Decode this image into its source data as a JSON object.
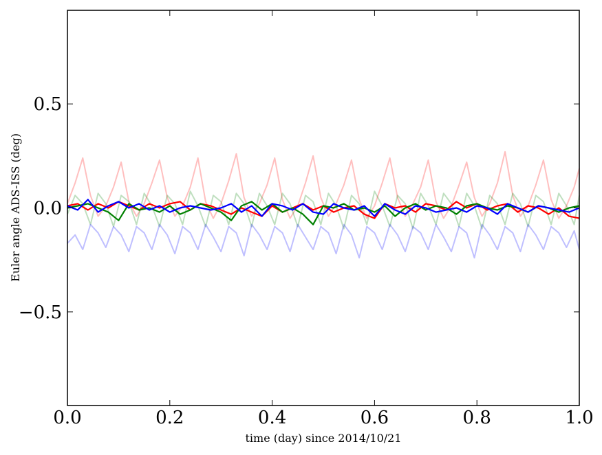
{
  "chart_data": {
    "type": "line",
    "xlabel": "time (day) since 2014/10/21",
    "ylabel": "Euler angle ADS-ISS (deg)",
    "xlim": [
      0.0,
      1.0
    ],
    "ylim": [
      -0.95,
      0.95
    ],
    "xticks": [
      0.0,
      0.2,
      0.4,
      0.6,
      0.8,
      1.0
    ],
    "xtick_labels": [
      "0.0",
      "0.2",
      "0.4",
      "0.6",
      "0.8",
      "1.0"
    ],
    "yticks": [
      -0.5,
      0.0,
      0.5
    ],
    "ytick_labels": [
      "−0.5",
      "0.0",
      "0.5"
    ],
    "grid": false,
    "legend": "none",
    "series": [
      {
        "color": "#ff0000",
        "opacity": 0.25,
        "x": [
          0.0,
          0.015,
          0.03,
          0.045,
          0.06,
          0.075,
          0.09,
          0.105,
          0.12,
          0.135,
          0.15,
          0.165,
          0.18,
          0.195,
          0.21,
          0.225,
          0.24,
          0.255,
          0.27,
          0.285,
          0.3,
          0.315,
          0.33,
          0.345,
          0.36,
          0.375,
          0.39,
          0.405,
          0.42,
          0.435,
          0.45,
          0.465,
          0.48,
          0.495,
          0.51,
          0.525,
          0.54,
          0.555,
          0.57,
          0.585,
          0.6,
          0.615,
          0.63,
          0.645,
          0.66,
          0.675,
          0.69,
          0.705,
          0.72,
          0.735,
          0.75,
          0.765,
          0.78,
          0.795,
          0.81,
          0.825,
          0.84,
          0.855,
          0.87,
          0.885,
          0.9,
          0.915,
          0.93,
          0.945,
          0.96,
          0.975,
          0.99,
          1.0
        ],
        "y": [
          0.02,
          0.12,
          0.24,
          0.06,
          -0.04,
          0.01,
          0.1,
          0.22,
          0.03,
          -0.04,
          0.02,
          0.12,
          0.23,
          0.05,
          -0.04,
          0.01,
          0.1,
          0.24,
          0.03,
          -0.05,
          0.02,
          0.13,
          0.26,
          0.05,
          -0.04,
          0.02,
          0.11,
          0.24,
          0.04,
          -0.05,
          0.01,
          0.12,
          0.25,
          0.05,
          -0.04,
          0.02,
          0.11,
          0.23,
          0.04,
          -0.05,
          0.01,
          0.12,
          0.24,
          0.05,
          -0.04,
          0.02,
          0.1,
          0.23,
          0.03,
          -0.05,
          0.01,
          0.11,
          0.22,
          0.05,
          -0.04,
          0.02,
          0.12,
          0.27,
          0.06,
          -0.04,
          0.01,
          0.11,
          0.23,
          0.04,
          -0.05,
          0.01,
          0.1,
          0.19
        ]
      },
      {
        "color": "#008000",
        "opacity": 0.25,
        "x": [
          0.0,
          0.015,
          0.03,
          0.045,
          0.06,
          0.075,
          0.09,
          0.105,
          0.12,
          0.135,
          0.15,
          0.165,
          0.18,
          0.195,
          0.21,
          0.225,
          0.24,
          0.255,
          0.27,
          0.285,
          0.3,
          0.315,
          0.33,
          0.345,
          0.36,
          0.375,
          0.39,
          0.405,
          0.42,
          0.435,
          0.45,
          0.465,
          0.48,
          0.495,
          0.51,
          0.525,
          0.54,
          0.555,
          0.57,
          0.585,
          0.6,
          0.615,
          0.63,
          0.645,
          0.66,
          0.675,
          0.69,
          0.705,
          0.72,
          0.735,
          0.75,
          0.765,
          0.78,
          0.795,
          0.81,
          0.825,
          0.84,
          0.855,
          0.87,
          0.885,
          0.9,
          0.915,
          0.93,
          0.945,
          0.96,
          0.975,
          0.99,
          1.0
        ],
        "y": [
          -0.03,
          0.06,
          0.02,
          -0.08,
          0.07,
          0.02,
          -0.09,
          0.06,
          0.03,
          -0.08,
          0.07,
          0.01,
          -0.09,
          0.06,
          0.02,
          -0.08,
          0.08,
          0.01,
          -0.09,
          0.06,
          0.03,
          -0.08,
          0.07,
          0.02,
          -0.09,
          0.07,
          0.01,
          -0.08,
          0.07,
          0.02,
          -0.09,
          0.06,
          0.03,
          -0.08,
          0.07,
          0.01,
          -0.1,
          0.06,
          0.02,
          -0.08,
          0.08,
          0.01,
          -0.09,
          0.06,
          0.02,
          -0.1,
          0.07,
          0.01,
          -0.08,
          0.07,
          0.02,
          -0.09,
          0.07,
          0.01,
          -0.1,
          0.06,
          0.02,
          -0.08,
          0.07,
          0.02,
          -0.09,
          0.06,
          0.03,
          -0.08,
          0.07,
          0.01,
          -0.08,
          0.06
        ]
      },
      {
        "color": "#0000ff",
        "opacity": 0.25,
        "x": [
          0.0,
          0.015,
          0.03,
          0.045,
          0.06,
          0.075,
          0.09,
          0.105,
          0.12,
          0.135,
          0.15,
          0.165,
          0.18,
          0.195,
          0.21,
          0.225,
          0.24,
          0.255,
          0.27,
          0.285,
          0.3,
          0.315,
          0.33,
          0.345,
          0.36,
          0.375,
          0.39,
          0.405,
          0.42,
          0.435,
          0.45,
          0.465,
          0.48,
          0.495,
          0.51,
          0.525,
          0.54,
          0.555,
          0.57,
          0.585,
          0.6,
          0.615,
          0.63,
          0.645,
          0.66,
          0.675,
          0.69,
          0.705,
          0.72,
          0.735,
          0.75,
          0.765,
          0.78,
          0.795,
          0.81,
          0.825,
          0.84,
          0.855,
          0.87,
          0.885,
          0.9,
          0.915,
          0.93,
          0.945,
          0.96,
          0.975,
          0.99,
          1.0
        ],
        "y": [
          -0.17,
          -0.13,
          -0.2,
          -0.08,
          -0.12,
          -0.19,
          -0.09,
          -0.13,
          -0.21,
          -0.09,
          -0.12,
          -0.2,
          -0.08,
          -0.13,
          -0.22,
          -0.09,
          -0.12,
          -0.2,
          -0.08,
          -0.14,
          -0.21,
          -0.09,
          -0.12,
          -0.23,
          -0.08,
          -0.13,
          -0.2,
          -0.09,
          -0.12,
          -0.21,
          -0.08,
          -0.14,
          -0.2,
          -0.09,
          -0.12,
          -0.22,
          -0.08,
          -0.13,
          -0.24,
          -0.09,
          -0.12,
          -0.2,
          -0.08,
          -0.13,
          -0.21,
          -0.09,
          -0.12,
          -0.2,
          -0.08,
          -0.14,
          -0.21,
          -0.09,
          -0.12,
          -0.24,
          -0.08,
          -0.13,
          -0.2,
          -0.09,
          -0.12,
          -0.21,
          -0.08,
          -0.13,
          -0.2,
          -0.09,
          -0.12,
          -0.19,
          -0.11,
          -0.2
        ]
      },
      {
        "color": "#ff0000",
        "opacity": 1,
        "x": [
          0.0,
          0.02,
          0.04,
          0.06,
          0.08,
          0.1,
          0.12,
          0.14,
          0.16,
          0.18,
          0.2,
          0.22,
          0.24,
          0.26,
          0.28,
          0.3,
          0.32,
          0.34,
          0.36,
          0.38,
          0.4,
          0.42,
          0.44,
          0.46,
          0.48,
          0.5,
          0.52,
          0.54,
          0.56,
          0.58,
          0.6,
          0.62,
          0.64,
          0.66,
          0.68,
          0.7,
          0.72,
          0.74,
          0.76,
          0.78,
          0.8,
          0.82,
          0.84,
          0.86,
          0.88,
          0.9,
          0.92,
          0.94,
          0.96,
          0.98,
          1.0
        ],
        "y": [
          0.01,
          0.02,
          -0.01,
          0.02,
          0.0,
          0.03,
          0.01,
          -0.01,
          0.02,
          0.0,
          0.02,
          0.03,
          -0.01,
          0.02,
          0.01,
          -0.01,
          -0.03,
          0.0,
          -0.02,
          -0.04,
          0.01,
          -0.02,
          0.0,
          0.02,
          -0.01,
          0.01,
          -0.02,
          0.0,
          0.01,
          -0.03,
          -0.05,
          0.02,
          0.0,
          0.01,
          -0.02,
          0.02,
          0.01,
          -0.01,
          0.03,
          0.0,
          0.02,
          -0.01,
          0.01,
          0.02,
          -0.02,
          0.01,
          0.0,
          -0.03,
          0.0,
          -0.04,
          -0.05
        ]
      },
      {
        "color": "#008000",
        "opacity": 1,
        "x": [
          0.0,
          0.02,
          0.04,
          0.06,
          0.08,
          0.1,
          0.12,
          0.14,
          0.16,
          0.18,
          0.2,
          0.22,
          0.24,
          0.26,
          0.28,
          0.3,
          0.32,
          0.34,
          0.36,
          0.38,
          0.4,
          0.42,
          0.44,
          0.46,
          0.48,
          0.5,
          0.52,
          0.54,
          0.56,
          0.58,
          0.6,
          0.62,
          0.64,
          0.66,
          0.68,
          0.7,
          0.72,
          0.74,
          0.76,
          0.78,
          0.8,
          0.82,
          0.84,
          0.86,
          0.88,
          0.9,
          0.92,
          0.94,
          0.96,
          0.98,
          1.0
        ],
        "y": [
          0.0,
          0.01,
          0.02,
          0.0,
          -0.02,
          -0.06,
          0.02,
          -0.01,
          0.0,
          -0.02,
          0.01,
          -0.03,
          -0.01,
          0.02,
          0.0,
          -0.02,
          -0.06,
          0.01,
          0.03,
          -0.01,
          0.02,
          -0.02,
          0.0,
          -0.03,
          -0.08,
          0.01,
          0.0,
          0.02,
          -0.01,
          0.0,
          -0.02,
          0.01,
          -0.04,
          0.0,
          0.02,
          -0.01,
          0.01,
          0.0,
          -0.03,
          0.01,
          0.02,
          0.0,
          -0.01,
          0.01,
          0.0,
          -0.02,
          0.01,
          0.0,
          -0.02,
          0.0,
          0.01
        ]
      },
      {
        "color": "#0000ff",
        "opacity": 1,
        "x": [
          0.0,
          0.02,
          0.04,
          0.06,
          0.08,
          0.1,
          0.12,
          0.14,
          0.16,
          0.18,
          0.2,
          0.22,
          0.24,
          0.26,
          0.28,
          0.3,
          0.32,
          0.34,
          0.36,
          0.38,
          0.4,
          0.42,
          0.44,
          0.46,
          0.48,
          0.5,
          0.52,
          0.54,
          0.56,
          0.58,
          0.6,
          0.62,
          0.64,
          0.66,
          0.68,
          0.7,
          0.72,
          0.74,
          0.76,
          0.78,
          0.8,
          0.82,
          0.84,
          0.86,
          0.88,
          0.9,
          0.92,
          0.94,
          0.96,
          0.98,
          1.0
        ],
        "y": [
          0.01,
          -0.01,
          0.04,
          -0.02,
          0.01,
          0.03,
          0.0,
          0.02,
          -0.01,
          0.01,
          -0.02,
          0.0,
          0.01,
          0.0,
          -0.01,
          0.0,
          0.02,
          -0.02,
          0.01,
          -0.04,
          0.02,
          0.01,
          -0.01,
          0.02,
          -0.02,
          -0.03,
          0.02,
          0.0,
          -0.01,
          0.01,
          -0.04,
          0.02,
          -0.01,
          -0.03,
          0.01,
          0.0,
          -0.02,
          -0.01,
          0.0,
          -0.02,
          0.01,
          0.0,
          -0.03,
          0.02,
          0.0,
          -0.02,
          0.01,
          0.0,
          -0.01,
          -0.02,
          0.0
        ]
      }
    ]
  }
}
